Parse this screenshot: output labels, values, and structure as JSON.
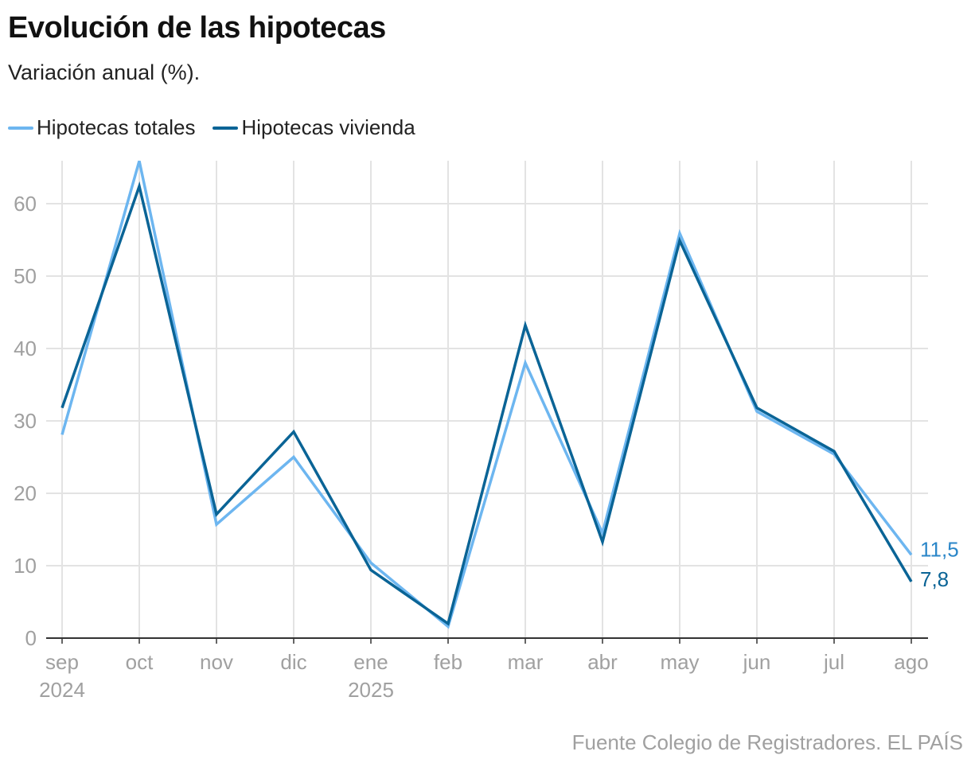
{
  "title": "Evolución de las hipotecas",
  "subtitle": "Variación anual (%).",
  "source": "Fuente Colegio de Registradores. EL PAÍS",
  "chart_data": {
    "type": "line",
    "title": "Evolución de las hipotecas",
    "subtitle": "Variación anual (%).",
    "categories": [
      "sep",
      "oct",
      "nov",
      "dic",
      "ene",
      "feb",
      "mar",
      "abr",
      "may",
      "jun",
      "jul",
      "ago"
    ],
    "year_labels": {
      "0": "2024",
      "4": "2025"
    },
    "ylim": [
      0,
      66
    ],
    "yticks": [
      0,
      10,
      20,
      30,
      40,
      50,
      60
    ],
    "grid": true,
    "legend_placement": "top-left",
    "series": [
      {
        "name": "Hipotecas totales",
        "color": "#6db6f0",
        "values": [
          28.1,
          65.9,
          15.7,
          25.0,
          10.4,
          1.6,
          38.0,
          14.5,
          55.9,
          31.3,
          25.4,
          11.5
        ],
        "end_label": "11,5"
      },
      {
        "name": "Hipotecas vivienda",
        "color": "#0a6496",
        "values": [
          31.8,
          62.4,
          17.1,
          28.5,
          9.4,
          2.0,
          43.2,
          13.3,
          54.9,
          31.8,
          25.8,
          7.8
        ],
        "end_label": "7,8"
      }
    ]
  }
}
